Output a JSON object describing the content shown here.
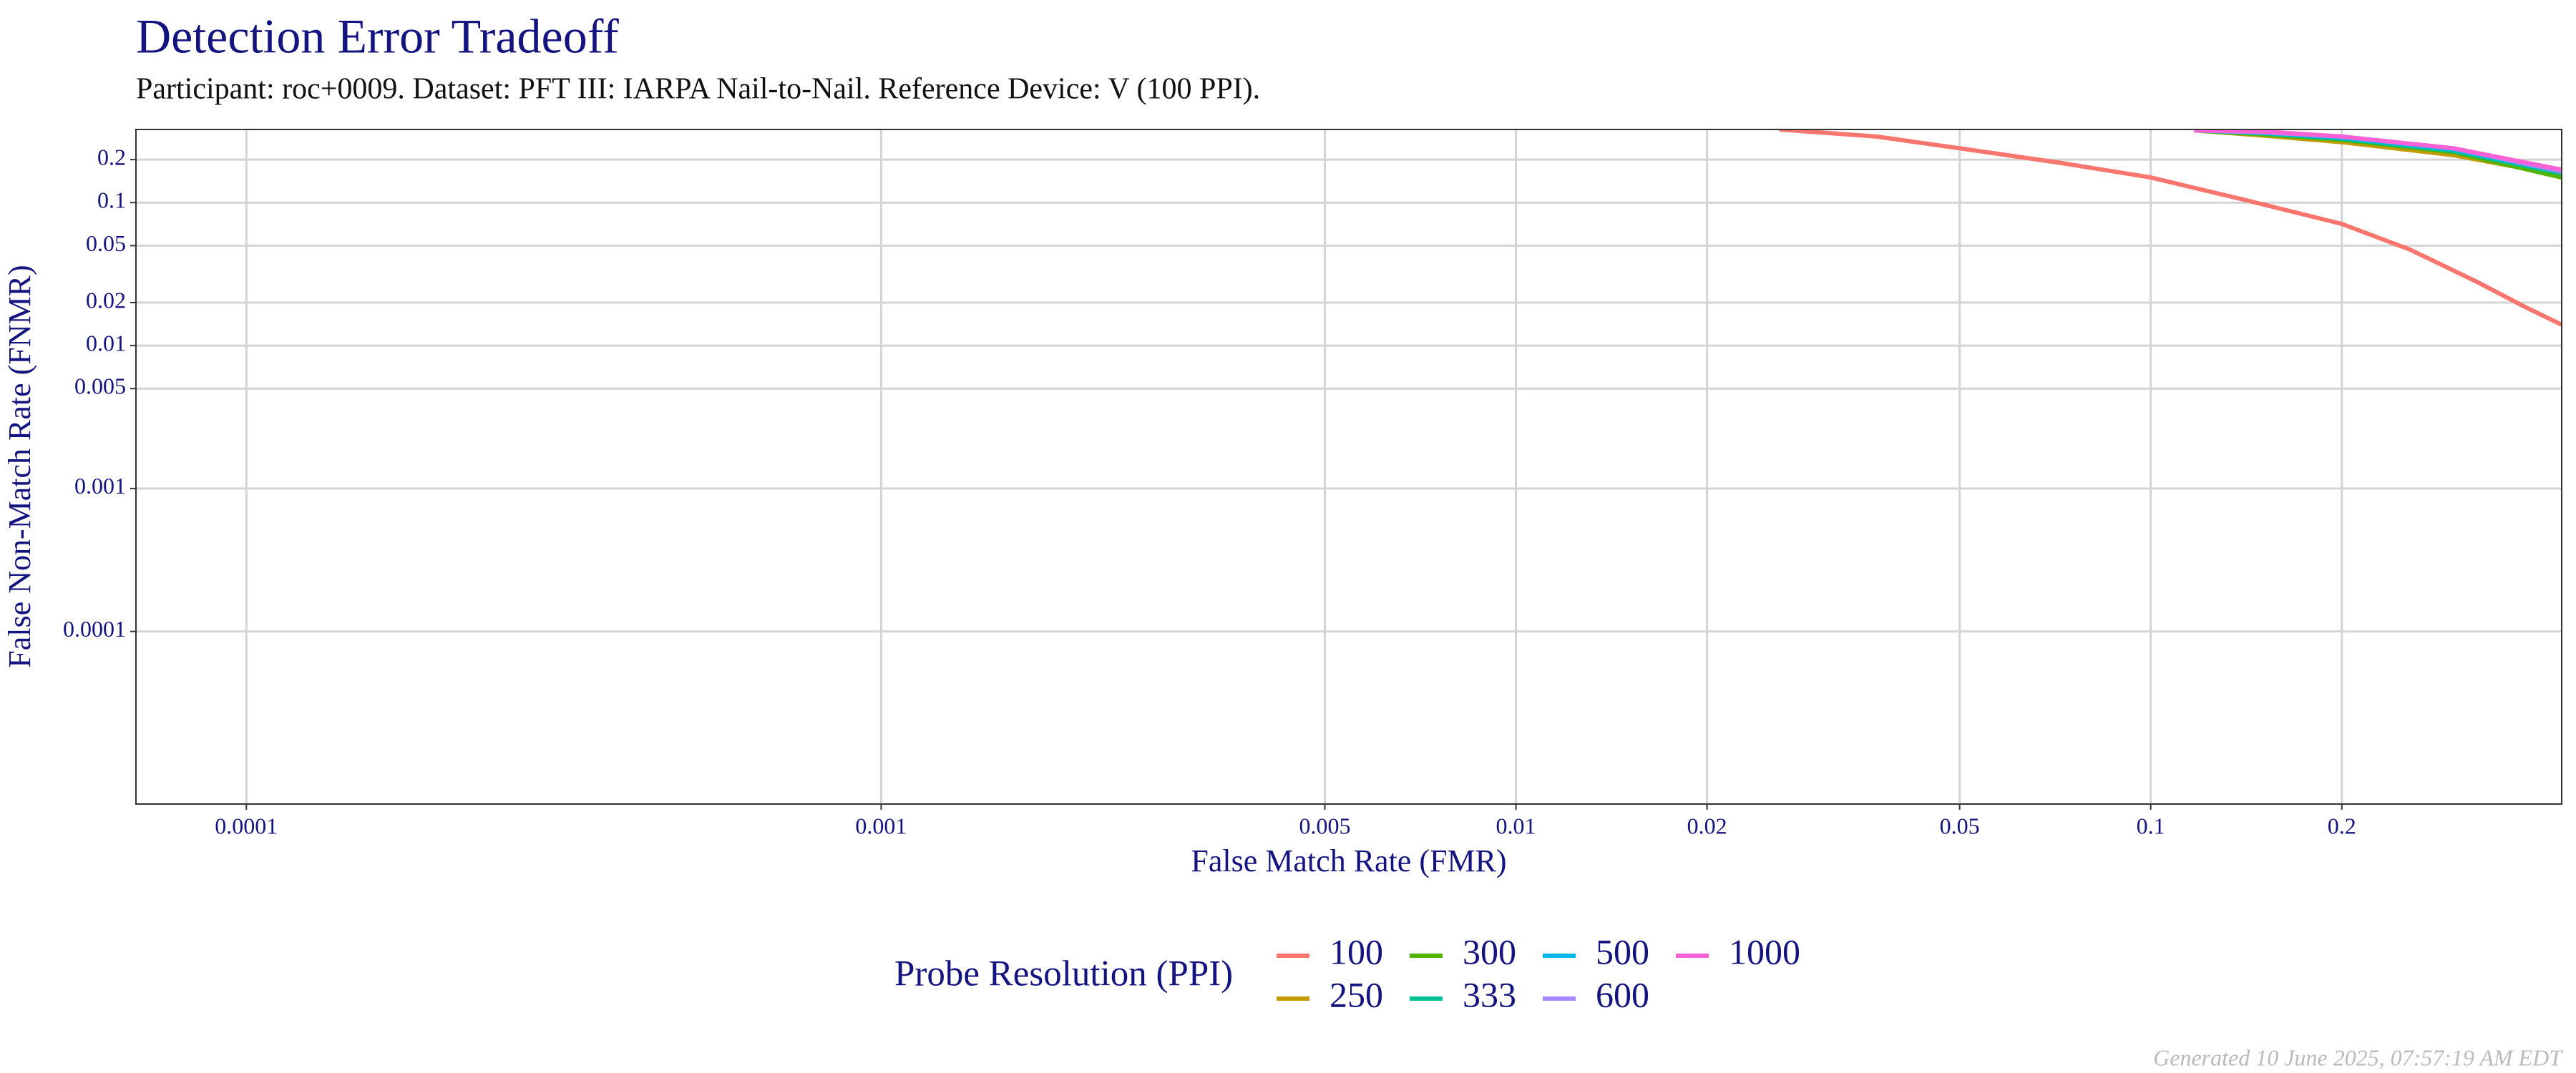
{
  "chart_data": {
    "type": "line",
    "title": "Detection Error Tradeoff",
    "subtitle": "Participant: roc+0009. Dataset: PFT III: IARPA Nail-to-Nail. Reference Device: V (100 PPI).",
    "x_label": "False Match Rate (FMR)",
    "y_label": "False Non-Match Rate (FNMR)",
    "legend_title": "Probe Resolution (PPI)",
    "footer": "Generated 10 June 2025, 07:57:19 AM EDT",
    "log_x": true,
    "log_y": true,
    "grid": true,
    "legend": "bottom",
    "xlim": [
      6.7e-05,
      0.444
    ],
    "ylim": [
      6.2e-06,
      0.325
    ],
    "xticks": [
      0.0001,
      0.001,
      0.005,
      0.01,
      0.02,
      0.05,
      0.1,
      0.2
    ],
    "yticks": [
      0.2,
      0.1,
      0.05,
      0.02,
      0.01,
      0.005,
      0.001,
      0.0001
    ],
    "series": [
      {
        "name": "100",
        "color": "#F8766D",
        "x": [
          0.026,
          0.037,
          0.05,
          0.072,
          0.1,
          0.14,
          0.2,
          0.256,
          0.326,
          0.39,
          0.444
        ],
        "values": [
          0.325,
          0.29,
          0.24,
          0.19,
          0.15,
          0.105,
          0.071,
          0.047,
          0.028,
          0.0185,
          0.014
        ]
      },
      {
        "name": "250",
        "color": "#C49A00",
        "x": [
          0.117,
          0.15,
          0.2,
          0.3,
          0.444
        ],
        "values": [
          0.32,
          0.295,
          0.265,
          0.215,
          0.155
        ]
      },
      {
        "name": "300",
        "color": "#53B400",
        "x": [
          0.117,
          0.15,
          0.2,
          0.3,
          0.444
        ],
        "values": [
          0.32,
          0.3,
          0.275,
          0.225,
          0.15
        ]
      },
      {
        "name": "333",
        "color": "#00C094",
        "x": [
          0.117,
          0.15,
          0.2,
          0.3,
          0.444
        ],
        "values": [
          0.32,
          0.305,
          0.28,
          0.23,
          0.16
        ]
      },
      {
        "name": "500",
        "color": "#00B6EB",
        "x": [
          0.117,
          0.15,
          0.2,
          0.3,
          0.444
        ],
        "values": [
          0.32,
          0.31,
          0.285,
          0.235,
          0.165
        ]
      },
      {
        "name": "600",
        "color": "#A58AFF",
        "x": [
          0.117,
          0.15,
          0.2,
          0.3,
          0.444
        ],
        "values": [
          0.32,
          0.31,
          0.29,
          0.24,
          0.165
        ]
      },
      {
        "name": "1000",
        "color": "#FB61D7",
        "x": [
          0.117,
          0.15,
          0.2,
          0.3,
          0.444
        ],
        "values": [
          0.32,
          0.315,
          0.29,
          0.24,
          0.17
        ]
      }
    ]
  }
}
